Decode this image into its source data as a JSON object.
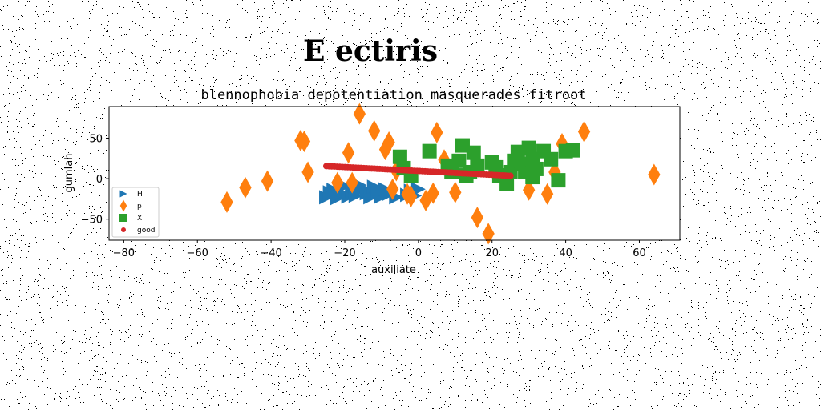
{
  "chart_data": {
    "type": "scatter",
    "title": "E ectiris",
    "subtitle": "blennophobia depotentiation masquerades fitroot",
    "xlabel": "auxiliate",
    "ylabel": "gumlah",
    "xlim": [
      -84,
      71
    ],
    "ylim": [
      -76,
      89
    ],
    "xticks": [
      -80,
      -60,
      -40,
      -20,
      0,
      20,
      40,
      60
    ],
    "yticks": [
      -50,
      0,
      50
    ],
    "grid": false,
    "legend_position": "lower-left",
    "noise_background": true,
    "series": [
      {
        "name": "H",
        "marker": "triangle-right",
        "color": "#1f77b4",
        "points": [
          [
            -25,
            -23
          ],
          [
            -23,
            -14
          ],
          [
            -22,
            -24
          ],
          [
            -21,
            -18
          ],
          [
            -20,
            -9
          ],
          [
            -19,
            -22
          ],
          [
            -18,
            -15
          ],
          [
            -17,
            -21
          ],
          [
            -15,
            -12
          ],
          [
            -14,
            -18
          ],
          [
            -13,
            -23
          ],
          [
            -12,
            -10
          ],
          [
            -11,
            -17
          ],
          [
            -10,
            -22
          ],
          [
            -9,
            -13
          ],
          [
            -6,
            -23
          ],
          [
            -3,
            -20
          ],
          [
            -2,
            -15
          ],
          [
            -1,
            -21
          ],
          [
            0,
            -13
          ],
          [
            -24,
            -17
          ],
          [
            -16,
            -8
          ],
          [
            -8,
            -19
          ]
        ]
      },
      {
        "name": "p",
        "marker": "diamond",
        "color": "#ff7f0e",
        "points": [
          [
            -52,
            -29
          ],
          [
            -47,
            -11
          ],
          [
            -41,
            -3
          ],
          [
            -31,
            46
          ],
          [
            -30,
            8
          ],
          [
            -22,
            -5
          ],
          [
            -19,
            32
          ],
          [
            -18,
            -5
          ],
          [
            -16,
            80
          ],
          [
            -12,
            59
          ],
          [
            -9,
            36
          ],
          [
            -8,
            45
          ],
          [
            -7,
            -13
          ],
          [
            -3,
            -19
          ],
          [
            -2,
            -22
          ],
          [
            2,
            -27
          ],
          [
            4,
            -18
          ],
          [
            5,
            57
          ],
          [
            7,
            23
          ],
          [
            10,
            -17
          ],
          [
            16,
            -48
          ],
          [
            19,
            -68
          ],
          [
            30,
            -14
          ],
          [
            35,
            -19
          ],
          [
            37,
            8
          ],
          [
            39,
            43
          ],
          [
            45,
            58
          ],
          [
            64,
            5
          ],
          [
            -32,
            47
          ],
          [
            -6,
            10
          ]
        ]
      },
      {
        "name": "X",
        "marker": "square",
        "color": "#2ca02c",
        "points": [
          [
            -5,
            27
          ],
          [
            -4,
            13
          ],
          [
            -2,
            4
          ],
          [
            3,
            34
          ],
          [
            8,
            16
          ],
          [
            9,
            8
          ],
          [
            11,
            22
          ],
          [
            12,
            41
          ],
          [
            13,
            4
          ],
          [
            15,
            32
          ],
          [
            16,
            16
          ],
          [
            20,
            20
          ],
          [
            22,
            4
          ],
          [
            24,
            -6
          ],
          [
            25,
            8
          ],
          [
            26,
            22
          ],
          [
            27,
            33
          ],
          [
            28,
            18
          ],
          [
            29,
            8
          ],
          [
            30,
            38
          ],
          [
            31,
            2
          ],
          [
            32,
            12
          ],
          [
            34,
            34
          ],
          [
            36,
            24
          ],
          [
            38,
            -2
          ],
          [
            40,
            34
          ],
          [
            42,
            35
          ],
          [
            31,
            24
          ],
          [
            14,
            8
          ],
          [
            21,
            14
          ]
        ]
      },
      {
        "name": "good",
        "marker": "circle",
        "color": "#d62728",
        "line": {
          "x0": -25,
          "y0": 15.5,
          "x1": 25,
          "y1": 3.5,
          "count": 70
        }
      }
    ]
  }
}
